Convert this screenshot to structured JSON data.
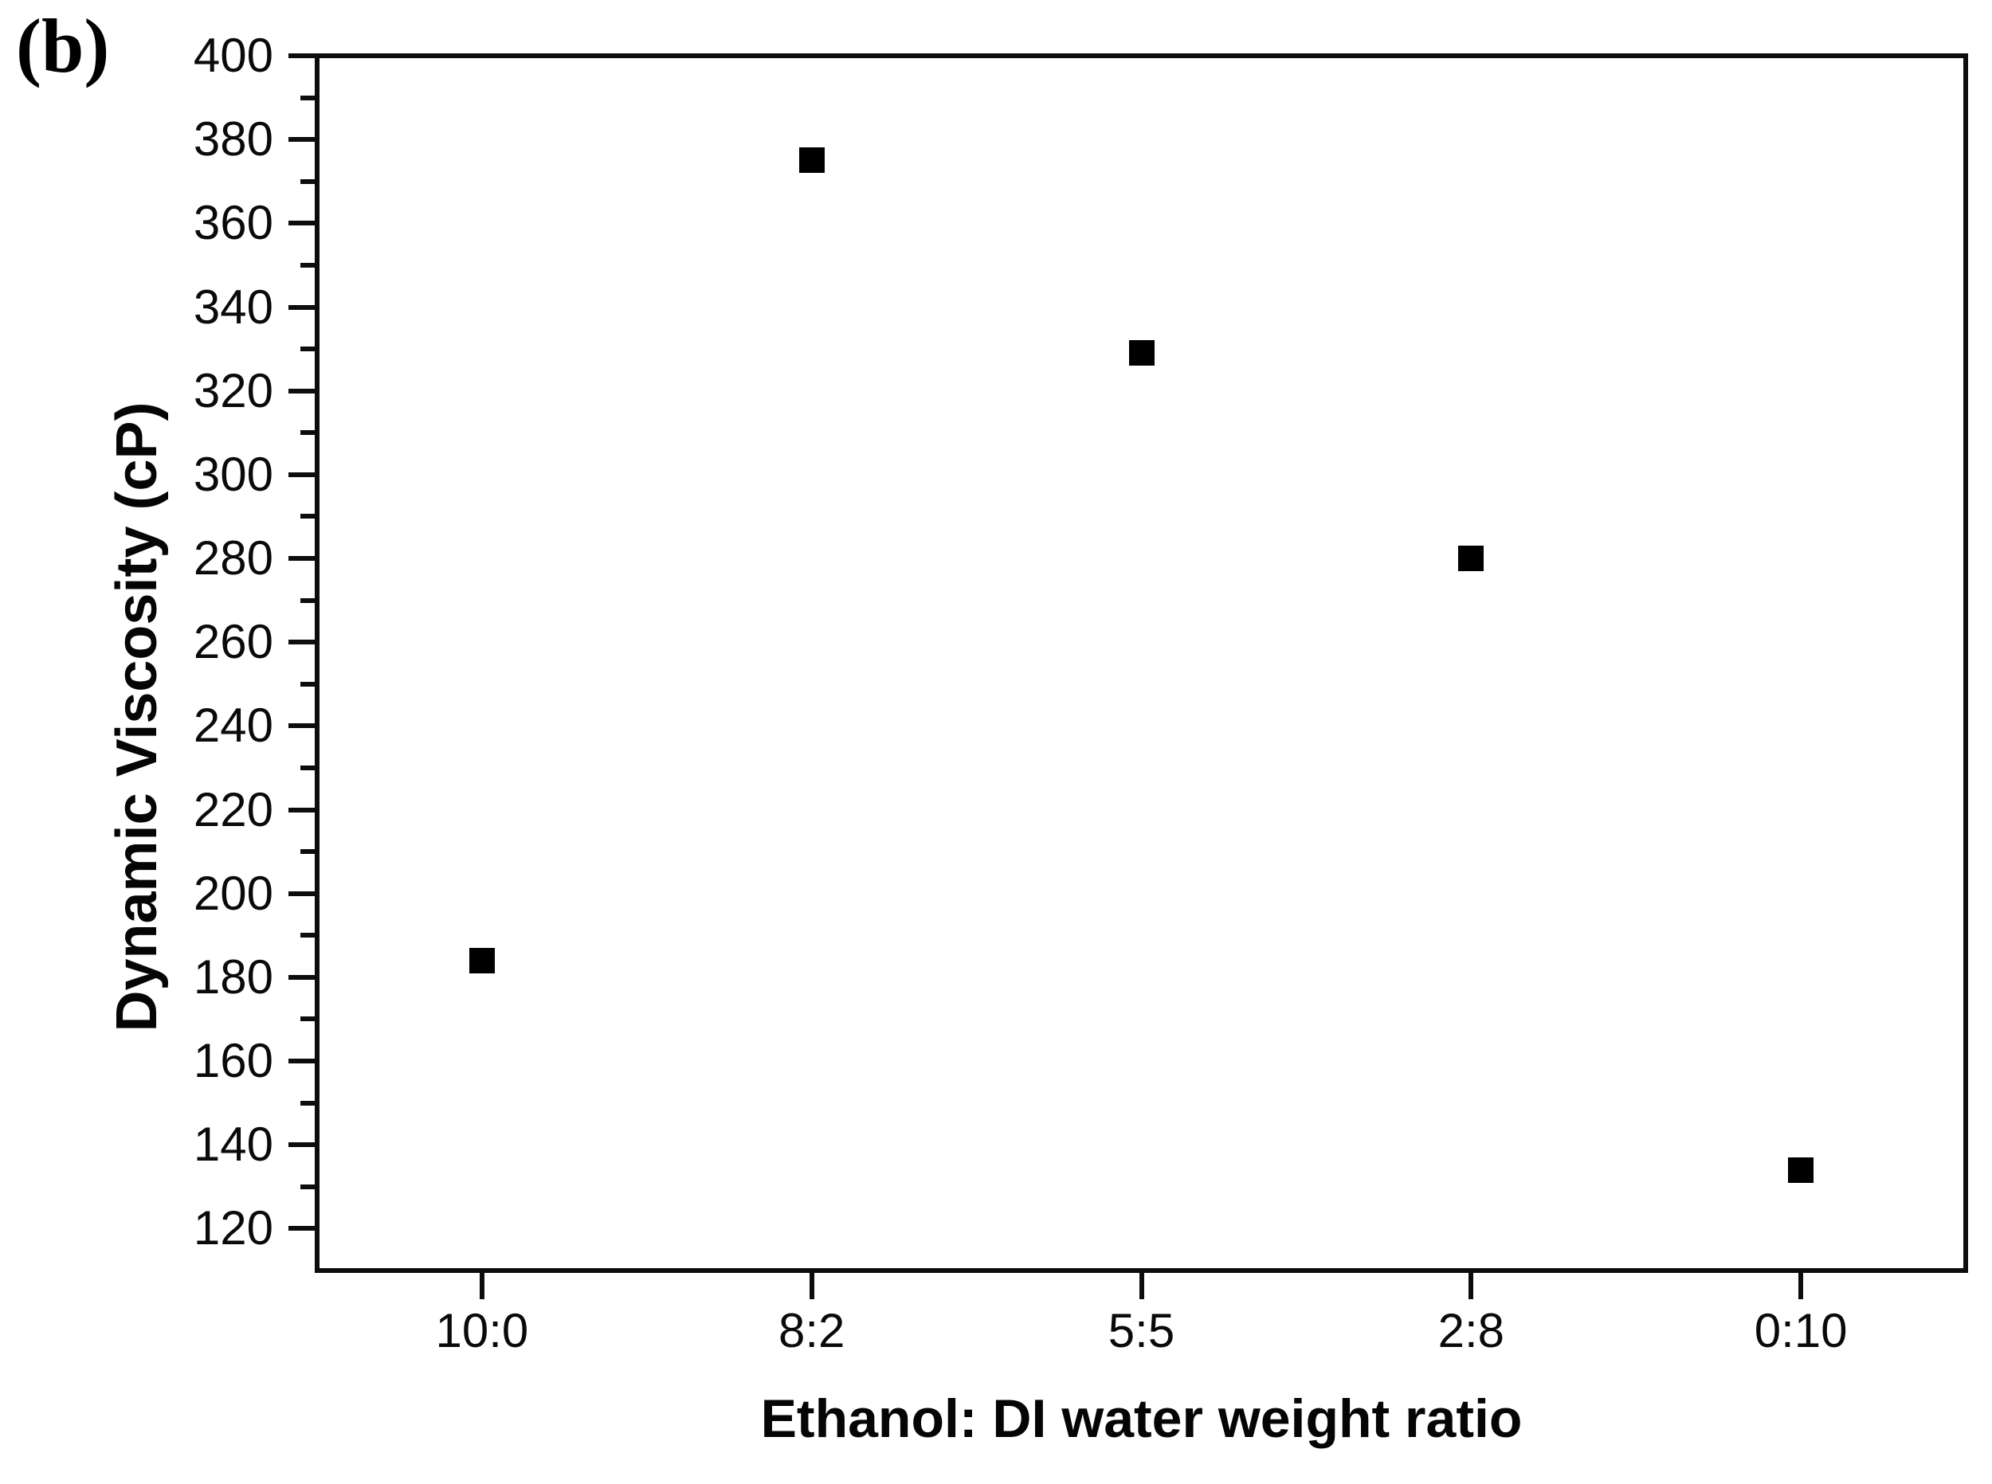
{
  "figure_label": "(b)",
  "colors": {
    "foreground": "#000000",
    "axis": "#0d0d0d",
    "background": "#ffffff",
    "marker": "#000000"
  },
  "chart_data": {
    "type": "scatter",
    "title": "",
    "xlabel": "Ethanol: DI water weight ratio",
    "ylabel": "Dynamic Viscosity (cP)",
    "categories": [
      "10:0",
      "8:2",
      "5:5",
      "2:8",
      "0:10"
    ],
    "series": [
      {
        "name": "dynamic-viscosity",
        "marker": "filled-square",
        "color": "#000000",
        "values": [
          184,
          375,
          329,
          280,
          134
        ]
      }
    ],
    "ylim": [
      110,
      400
    ],
    "y_major_ticks": [
      400,
      380,
      360,
      340,
      320,
      300,
      280,
      260,
      240,
      220,
      200,
      180,
      160,
      140,
      120
    ],
    "y_minor_ticks": [
      390,
      370,
      350,
      330,
      310,
      290,
      270,
      250,
      230,
      210,
      190,
      170,
      150,
      130
    ],
    "grid": false,
    "legend": "none",
    "frame": "box",
    "tick_direction": "out"
  }
}
